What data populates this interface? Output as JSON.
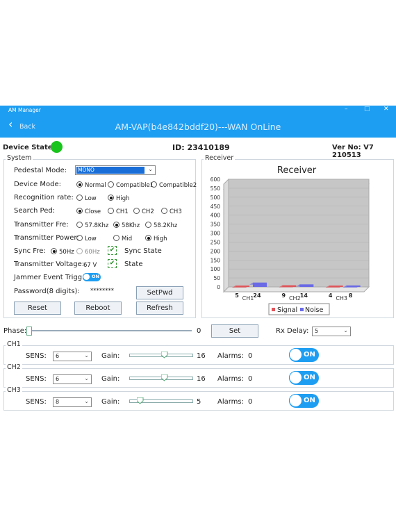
{
  "window": {
    "title": "AM Manager",
    "controls": [
      "–",
      "□",
      "✕"
    ]
  },
  "app": {
    "back_label": "Back",
    "title": "AM-VAP(b4e842bddf20)---WAN OnLine"
  },
  "status": {
    "device_state_label": "Device State:",
    "device_state_color": "#19c41c",
    "id_text": "ID: 23410189",
    "version_text": "Ver No: V7 210513"
  },
  "system": {
    "group_label": "System",
    "pedestal_mode": {
      "label": "Pedestal Mode:",
      "value": "MONO"
    },
    "device_mode": {
      "label": "Device Mode:",
      "options": [
        "Normal",
        "Compatible1",
        "Compatible2"
      ],
      "selected": "Normal"
    },
    "recognition_rate": {
      "label": "Recognition rate:",
      "options": [
        "Low",
        "High"
      ],
      "selected": "High"
    },
    "search_ped": {
      "label": "Search Ped:",
      "options": [
        "Close",
        "CH1",
        "CH2",
        "CH3"
      ],
      "selected": "Close"
    },
    "transmitter_fre": {
      "label": "Transmitter Fre:",
      "options": [
        "57.8Khz",
        "58Khz",
        "58.2Khz"
      ],
      "selected": "58Khz"
    },
    "transmitter_power": {
      "label": "Transmitter Power:",
      "options": [
        "Low",
        "Mid",
        "High"
      ],
      "selected": "High"
    },
    "sync_fre": {
      "label": "Sync Fre:",
      "options": [
        "50Hz",
        "60Hz"
      ],
      "selected": "50Hz",
      "sync_state_label": "Sync State"
    },
    "transmitter_voltage": {
      "label": "Transmitter Voltage:",
      "value": "67 V",
      "state_label": "State"
    },
    "jammer": {
      "label": "Jammer Event Trigg:",
      "toggle_text": "ON"
    },
    "password": {
      "label": "Password(8 digits):",
      "value": "********",
      "setpwd_label": "SetPwd"
    },
    "buttons": {
      "reset": "Reset",
      "reboot": "Reboot",
      "refresh": "Refresh"
    }
  },
  "receiver": {
    "group_label": "Receiver",
    "chart_data": {
      "type": "bar",
      "title": "Receiver",
      "categories": [
        "CH1",
        "CH2",
        "CH3"
      ],
      "series": [
        {
          "name": "Signal",
          "values": [
            5,
            9,
            4
          ],
          "color": "#e0555a"
        },
        {
          "name": "Noise",
          "values": [
            24,
            14,
            8
          ],
          "color": "#6a6ae6"
        }
      ],
      "ylim": [
        0,
        600
      ],
      "yticks": [
        "0",
        "50",
        "100",
        "150",
        "200",
        "250",
        "300",
        "350",
        "400",
        "450",
        "500",
        "550",
        "600"
      ],
      "grid": true,
      "legend": "bottom-right"
    }
  },
  "phase": {
    "label": "Phase:",
    "value": "0",
    "set_label": "Set",
    "rx_delay_label": "Rx Delay:",
    "rx_delay_value": "5"
  },
  "channels": [
    {
      "name": "CH1",
      "sens_label": "SENS:",
      "sens_value": "6",
      "gain_label": "Gain:",
      "gain_value": "16",
      "alarms_label": "Alarms:",
      "alarms_value": "0",
      "toggle_text": "ON",
      "gain_level": 0.55
    },
    {
      "name": "CH2",
      "sens_label": "SENS:",
      "sens_value": "6",
      "gain_label": "Gain:",
      "gain_value": "16",
      "alarms_label": "Alarms:",
      "alarms_value": "0",
      "toggle_text": "ON",
      "gain_level": 0.55
    },
    {
      "name": "CH3",
      "sens_label": "SENS:",
      "sens_value": "8",
      "gain_label": "Gain:",
      "gain_value": "5",
      "alarms_label": "Alarms:",
      "alarms_value": "0",
      "toggle_text": "ON",
      "gain_level": 0.17
    }
  ]
}
